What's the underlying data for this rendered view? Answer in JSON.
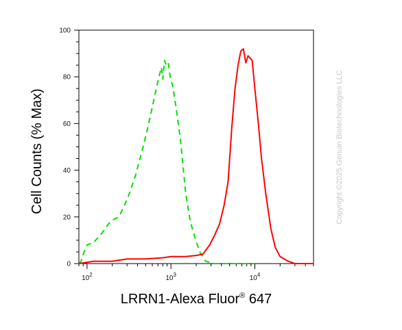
{
  "chart_data": {
    "type": "line",
    "title": "",
    "xlabel": "LRRN1-Alexa Fluor",
    "xlabel_sup": "®",
    "xlabel_suffix": " 647",
    "ylabel": "Cell Counts (% Max)",
    "x_scale": "log",
    "xlim": [
      80,
      50000
    ],
    "ylim": [
      0,
      100
    ],
    "x_ticks": [
      {
        "value": 100,
        "base": "10",
        "exp": "2"
      },
      {
        "value": 1000,
        "base": "10",
        "exp": "3"
      },
      {
        "value": 10000,
        "base": "10",
        "exp": "4"
      }
    ],
    "y_ticks": [
      0,
      20,
      40,
      60,
      80,
      100
    ],
    "grid": false,
    "series": [
      {
        "color": "#00e000",
        "dashed": true,
        "points": [
          [
            80,
            0
          ],
          [
            85,
            1
          ],
          [
            90,
            4
          ],
          [
            100,
            8
          ],
          [
            120,
            9
          ],
          [
            150,
            13
          ],
          [
            180,
            17
          ],
          [
            210,
            19
          ],
          [
            240,
            20
          ],
          [
            280,
            25
          ],
          [
            320,
            30
          ],
          [
            380,
            38
          ],
          [
            450,
            48
          ],
          [
            520,
            57
          ],
          [
            600,
            67
          ],
          [
            660,
            74
          ],
          [
            720,
            80
          ],
          [
            770,
            84
          ],
          [
            800,
            79
          ],
          [
            840,
            87
          ],
          [
            880,
            85
          ],
          [
            930,
            86
          ],
          [
            980,
            80
          ],
          [
            1050,
            76
          ],
          [
            1150,
            67
          ],
          [
            1300,
            53
          ],
          [
            1500,
            30
          ],
          [
            1700,
            18
          ],
          [
            1900,
            12
          ],
          [
            2200,
            5
          ],
          [
            2600,
            1
          ],
          [
            3200,
            0
          ],
          [
            5000,
            0
          ],
          [
            10000,
            0
          ]
        ]
      },
      {
        "color": "#ff0000",
        "dashed": false,
        "points": [
          [
            80,
            0
          ],
          [
            120,
            1
          ],
          [
            200,
            1
          ],
          [
            300,
            2
          ],
          [
            500,
            2
          ],
          [
            800,
            2.5
          ],
          [
            1000,
            3
          ],
          [
            1500,
            3
          ],
          [
            2000,
            3.5
          ],
          [
            2400,
            4
          ],
          [
            2900,
            8
          ],
          [
            3300,
            12
          ],
          [
            3800,
            17
          ],
          [
            4300,
            25
          ],
          [
            4800,
            35
          ],
          [
            5300,
            58
          ],
          [
            5800,
            75
          ],
          [
            6300,
            85
          ],
          [
            6800,
            91
          ],
          [
            7300,
            92
          ],
          [
            7800,
            86
          ],
          [
            8300,
            89
          ],
          [
            8800,
            88
          ],
          [
            9300,
            87
          ],
          [
            10000,
            75
          ],
          [
            11000,
            60
          ],
          [
            12000,
            45
          ],
          [
            13500,
            30
          ],
          [
            15500,
            15
          ],
          [
            17500,
            7
          ],
          [
            20000,
            3
          ],
          [
            25000,
            1
          ],
          [
            30000,
            0
          ],
          [
            50000,
            0
          ]
        ]
      }
    ]
  },
  "watermark": "Copyright ©2025 Genuin Biotechnologies LLC",
  "colors": {
    "axis": "#000000",
    "dashed_series": "#00e000",
    "solid_series": "#ff0000",
    "watermark": "#c8c8c8"
  }
}
